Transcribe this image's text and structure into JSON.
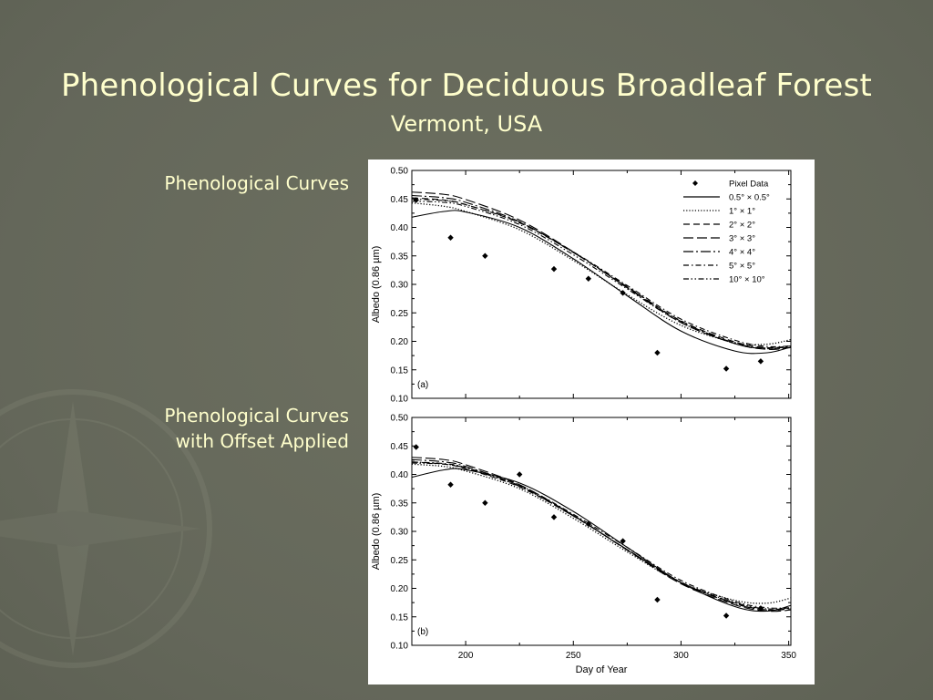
{
  "slide": {
    "title": "Phenological Curves for Deciduous Broadleaf Forest",
    "subtitle": "Vermont, USA",
    "label_a": "Phenological Curves",
    "label_b_line1": "Phenological Curves",
    "label_b_line2": "with Offset Applied"
  },
  "chart_data": [
    {
      "type": "line",
      "panel_label": "(a)",
      "xlabel": "",
      "ylabel": "Albedo (0.86 µm)",
      "xlim": [
        175,
        351
      ],
      "ylim": [
        0.1,
        0.5
      ],
      "xticks": [
        200,
        250,
        300,
        350
      ],
      "yticks": [
        0.1,
        0.15,
        0.2,
        0.25,
        0.3,
        0.35,
        0.4,
        0.45,
        0.5
      ],
      "show_xtick_labels": false,
      "legend_position": "top-right",
      "scatter": {
        "name": "Pixel Data",
        "x": [
          177,
          193,
          209,
          241,
          257,
          273,
          289,
          321,
          337
        ],
        "y": [
          0.448,
          0.382,
          0.35,
          0.327,
          0.31,
          0.285,
          0.18,
          0.152,
          0.165
        ]
      },
      "series": [
        {
          "name": "0.5° × 0.5°",
          "dash": "solid",
          "x": [
            175,
            190,
            200,
            225,
            250,
            275,
            300,
            325,
            340,
            351
          ],
          "y": [
            0.418,
            0.428,
            0.427,
            0.4,
            0.345,
            0.28,
            0.218,
            0.183,
            0.18,
            0.19
          ]
        },
        {
          "name": "1° × 1°",
          "dash": "dot",
          "x": [
            175,
            190,
            200,
            225,
            250,
            275,
            300,
            325,
            340,
            351
          ],
          "y": [
            0.443,
            0.437,
            0.428,
            0.396,
            0.342,
            0.282,
            0.228,
            0.198,
            0.195,
            0.203
          ]
        },
        {
          "name": "2° × 2°",
          "dash": "dash",
          "x": [
            175,
            190,
            200,
            225,
            250,
            275,
            300,
            325,
            340,
            351
          ],
          "y": [
            0.452,
            0.448,
            0.44,
            0.408,
            0.356,
            0.296,
            0.236,
            0.199,
            0.189,
            0.192
          ]
        },
        {
          "name": "3° × 3°",
          "dash": "longdash",
          "x": [
            175,
            190,
            200,
            225,
            250,
            275,
            300,
            325,
            340,
            351
          ],
          "y": [
            0.462,
            0.458,
            0.449,
            0.413,
            0.357,
            0.294,
            0.233,
            0.196,
            0.186,
            0.189
          ]
        },
        {
          "name": "4° × 4°",
          "dash": "longdashdot",
          "x": [
            175,
            190,
            200,
            225,
            250,
            275,
            300,
            325,
            340,
            351
          ],
          "y": [
            0.456,
            0.452,
            0.444,
            0.41,
            0.356,
            0.295,
            0.235,
            0.197,
            0.188,
            0.191
          ]
        },
        {
          "name": "5° × 5°",
          "dash": "dashdot",
          "x": [
            175,
            190,
            200,
            225,
            250,
            275,
            300,
            325,
            340,
            351
          ],
          "y": [
            0.45,
            0.447,
            0.44,
            0.409,
            0.357,
            0.298,
            0.239,
            0.202,
            0.191,
            0.192
          ]
        },
        {
          "name": "10° × 10°",
          "dash": "dashdotdot",
          "x": [
            175,
            190,
            200,
            225,
            250,
            275,
            300,
            325,
            340,
            351
          ],
          "y": [
            0.446,
            0.444,
            0.437,
            0.405,
            0.352,
            0.292,
            0.233,
            0.196,
            0.187,
            0.19
          ]
        }
      ]
    },
    {
      "type": "line",
      "panel_label": "(b)",
      "xlabel": "Day of Year",
      "ylabel": "Albedo (0.86 µm)",
      "xlim": [
        175,
        351
      ],
      "ylim": [
        0.1,
        0.5
      ],
      "xticks": [
        200,
        250,
        300,
        350
      ],
      "yticks": [
        0.1,
        0.15,
        0.2,
        0.25,
        0.3,
        0.35,
        0.4,
        0.45,
        0.5
      ],
      "show_xtick_labels": true,
      "scatter": {
        "name": "Pixel Data",
        "x": [
          177,
          193,
          209,
          225,
          241,
          257,
          273,
          289,
          321,
          337
        ],
        "y": [
          0.448,
          0.382,
          0.35,
          0.4,
          0.325,
          0.313,
          0.283,
          0.18,
          0.152,
          0.165
        ]
      },
      "series": [
        {
          "name": "0.5° × 0.5°",
          "dash": "solid",
          "x": [
            175,
            190,
            200,
            225,
            250,
            275,
            300,
            325,
            340,
            351
          ],
          "y": [
            0.395,
            0.408,
            0.408,
            0.385,
            0.335,
            0.272,
            0.21,
            0.168,
            0.16,
            0.17
          ]
        },
        {
          "name": "1° × 1°",
          "dash": "dot",
          "x": [
            175,
            190,
            200,
            225,
            250,
            275,
            300,
            325,
            340,
            351
          ],
          "y": [
            0.418,
            0.414,
            0.406,
            0.375,
            0.323,
            0.264,
            0.21,
            0.179,
            0.174,
            0.183
          ]
        },
        {
          "name": "2° × 2°",
          "dash": "dash",
          "x": [
            175,
            190,
            200,
            225,
            250,
            275,
            300,
            325,
            340,
            351
          ],
          "y": [
            0.422,
            0.418,
            0.41,
            0.378,
            0.327,
            0.268,
            0.21,
            0.174,
            0.162,
            0.164
          ]
        },
        {
          "name": "3° × 3°",
          "dash": "longdash",
          "x": [
            175,
            190,
            200,
            225,
            250,
            275,
            300,
            325,
            340,
            351
          ],
          "y": [
            0.43,
            0.426,
            0.417,
            0.382,
            0.328,
            0.267,
            0.208,
            0.171,
            0.16,
            0.162
          ]
        },
        {
          "name": "4° × 4°",
          "dash": "longdashdot",
          "x": [
            175,
            190,
            200,
            225,
            250,
            275,
            300,
            325,
            340,
            351
          ],
          "y": [
            0.426,
            0.422,
            0.414,
            0.38,
            0.328,
            0.268,
            0.21,
            0.173,
            0.162,
            0.165
          ]
        },
        {
          "name": "5° × 5°",
          "dash": "dashdot",
          "x": [
            175,
            190,
            200,
            225,
            250,
            275,
            300,
            325,
            340,
            351
          ],
          "y": [
            0.422,
            0.419,
            0.412,
            0.381,
            0.33,
            0.272,
            0.214,
            0.177,
            0.166,
            0.166
          ]
        },
        {
          "name": "10° × 10°",
          "dash": "dashdotdot",
          "x": [
            175,
            190,
            200,
            225,
            250,
            275,
            300,
            325,
            340,
            351
          ],
          "y": [
            0.42,
            0.418,
            0.411,
            0.379,
            0.327,
            0.268,
            0.211,
            0.175,
            0.164,
            0.166
          ]
        }
      ]
    }
  ]
}
